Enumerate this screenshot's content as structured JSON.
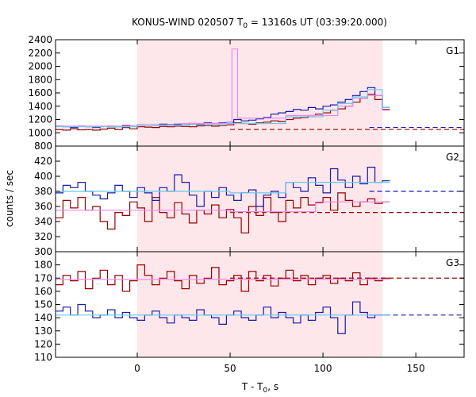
{
  "chart_data": {
    "type": "line",
    "title": "KONUS-WIND 020507 T",
    "title_sub": "0",
    "title_rest": " = 13160s UT (03:39:20.000)",
    "xlabel": "T - T",
    "xlabel_sub": "0",
    "xlabel_rest": ", s",
    "ylabel": "counts / sec",
    "xlim": [
      -44,
      176
    ],
    "xticks": [
      0,
      50,
      100,
      150
    ],
    "shaded_interval": [
      0,
      132
    ],
    "shade_color": "#fde7ea",
    "colors": {
      "red": "#990000",
      "blue": "#1a1ab0",
      "pink": "#ee88ee",
      "cyan": "#66ccee"
    },
    "panels": [
      {
        "label": "G1",
        "ylim": [
          800,
          2400
        ],
        "yticks": [
          800,
          1000,
          1200,
          1400,
          1600,
          1800,
          2000,
          2200,
          2400
        ],
        "bg_levels": [
          {
            "name": "G1 red background",
            "color": "red",
            "value": 1050
          },
          {
            "name": "G1 blue background",
            "color": "blue",
            "value": 1080
          }
        ],
        "series": [
          {
            "name": "G1 red",
            "color": "red",
            "x": [
              -44,
              -40,
              -36,
              -32,
              -28,
              -24,
              -20,
              -16,
              -12,
              -8,
              -4,
              0,
              4,
              8,
              12,
              16,
              20,
              24,
              28,
              32,
              36,
              40,
              44,
              48,
              52,
              56,
              60,
              64,
              68,
              72,
              76,
              80,
              84,
              88,
              92,
              96,
              100,
              104,
              108,
              112,
              116,
              120,
              124,
              128,
              132
            ],
            "y": [
              1050,
              1040,
              1060,
              1045,
              1050,
              1040,
              1055,
              1070,
              1050,
              1080,
              1060,
              1090,
              1085,
              1080,
              1095,
              1090,
              1100,
              1095,
              1090,
              1105,
              1110,
              1100,
              1110,
              1120,
              1150,
              1140,
              1130,
              1150,
              1160,
              1180,
              1170,
              1200,
              1220,
              1230,
              1260,
              1280,
              1300,
              1340,
              1360,
              1400,
              1460,
              1520,
              1580,
              1500,
              1350
            ]
          },
          {
            "name": "G1 blue",
            "color": "blue",
            "x": [
              -44,
              -40,
              -36,
              -32,
              -28,
              -24,
              -20,
              -16,
              -12,
              -8,
              -4,
              0,
              4,
              8,
              12,
              16,
              20,
              24,
              28,
              32,
              36,
              40,
              44,
              48,
              52,
              56,
              60,
              64,
              68,
              72,
              76,
              80,
              84,
              88,
              92,
              96,
              100,
              104,
              108,
              112,
              116,
              120,
              124,
              128,
              132
            ],
            "y": [
              1100,
              1090,
              1080,
              1100,
              1090,
              1080,
              1095,
              1100,
              1090,
              1110,
              1100,
              1120,
              1115,
              1120,
              1130,
              1125,
              1130,
              1120,
              1140,
              1135,
              1150,
              1140,
              1150,
              1160,
              1200,
              1180,
              1190,
              1210,
              1230,
              1280,
              1300,
              1320,
              1350,
              1340,
              1380,
              1360,
              1400,
              1420,
              1460,
              1500,
              1560,
              1620,
              1680,
              1560,
              1380
            ]
          },
          {
            "name": "G1 pink model",
            "color": "pink",
            "x": [
              -44,
              0,
              24,
              48,
              51,
              54,
              80,
              108,
              116,
              124,
              132
            ],
            "y": [
              1100,
              1120,
              1140,
              1160,
              2260,
              1220,
              1260,
              1400,
              1520,
              1560,
              1340
            ]
          },
          {
            "name": "G1 cyan model",
            "color": "cyan",
            "x": [
              -44,
              0,
              24,
              48,
              80,
              100,
              108,
              116,
              124,
              132
            ],
            "y": [
              1090,
              1110,
              1120,
              1140,
              1240,
              1340,
              1440,
              1540,
              1650,
              1380
            ]
          }
        ]
      },
      {
        "label": "G2",
        "ylim": [
          300,
          440
        ],
        "yticks": [
          300,
          320,
          340,
          360,
          380,
          400,
          420
        ],
        "bg_levels": [
          {
            "name": "G2 red background",
            "color": "red",
            "value": 352
          },
          {
            "name": "G2 blue background",
            "color": "blue",
            "value": 380
          }
        ],
        "series": [
          {
            "name": "G2 red",
            "color": "red",
            "x": [
              -44,
              -40,
              -36,
              -32,
              -28,
              -24,
              -20,
              -16,
              -12,
              -8,
              -4,
              0,
              4,
              8,
              12,
              16,
              20,
              24,
              28,
              32,
              36,
              40,
              44,
              48,
              52,
              56,
              60,
              64,
              68,
              72,
              76,
              80,
              84,
              88,
              92,
              96,
              100,
              104,
              108,
              112,
              116,
              120,
              124,
              128,
              132
            ],
            "y": [
              345,
              368,
              358,
              372,
              355,
              360,
              340,
              330,
              352,
              348,
              366,
              358,
              340,
              372,
              352,
              345,
              365,
              350,
              338,
              355,
              350,
              362,
              345,
              356,
              345,
              325,
              360,
              348,
              372,
              352,
              340,
              368,
              358,
              372,
              362,
              365,
              372,
              355,
              378,
              368,
              360,
              366,
              370,
              364,
              366
            ]
          },
          {
            "name": "G2 blue",
            "color": "blue",
            "x": [
              -44,
              -40,
              -36,
              -32,
              -28,
              -24,
              -20,
              -16,
              -12,
              -8,
              -4,
              0,
              4,
              8,
              12,
              16,
              20,
              24,
              28,
              32,
              36,
              40,
              44,
              48,
              52,
              56,
              60,
              64,
              68,
              72,
              76,
              80,
              84,
              88,
              92,
              96,
              100,
              104,
              108,
              112,
              116,
              120,
              124,
              128,
              132
            ],
            "y": [
              378,
              388,
              385,
              392,
              380,
              375,
              370,
              378,
              388,
              380,
              372,
              385,
              378,
              368,
              385,
              380,
              402,
              392,
              375,
              360,
              380,
              372,
              385,
              375,
              368,
              378,
              382,
              360,
              375,
              380,
              372,
              392,
              385,
              380,
              398,
              388,
              378,
              410,
              395,
              385,
              400,
              390,
              412,
              392,
              394
            ]
          },
          {
            "name": "G2 pink model",
            "color": "pink",
            "x": [
              -44,
              0,
              50,
              96,
              132
            ],
            "y": [
              355,
              355,
              353,
              366,
              366
            ]
          },
          {
            "name": "G2 cyan model",
            "color": "cyan",
            "x": [
              -44,
              0,
              50,
              80,
              132
            ],
            "y": [
              380,
              380,
              378,
              392,
              392
            ]
          }
        ]
      },
      {
        "label": "G3",
        "ylim": [
          110,
          190
        ],
        "yticks": [
          110,
          120,
          130,
          140,
          150,
          160,
          170,
          180
        ],
        "bg_levels": [
          {
            "name": "G3 red background",
            "color": "red",
            "value": 170
          },
          {
            "name": "G3 blue background",
            "color": "blue",
            "value": 142
          }
        ],
        "series": [
          {
            "name": "G3 red",
            "color": "red",
            "x": [
              -44,
              -40,
              -36,
              -32,
              -28,
              -24,
              -20,
              -16,
              -12,
              -8,
              -4,
              0,
              4,
              8,
              12,
              16,
              20,
              24,
              28,
              32,
              36,
              40,
              44,
              48,
              52,
              56,
              60,
              64,
              68,
              72,
              76,
              80,
              84,
              88,
              92,
              96,
              100,
              104,
              108,
              112,
              116,
              120,
              124,
              128,
              132
            ],
            "y": [
              165,
              172,
              168,
              175,
              162,
              170,
              176,
              165,
              172,
              160,
              168,
              180,
              172,
              165,
              170,
              175,
              168,
              162,
              172,
              166,
              170,
              178,
              165,
              168,
              172,
              160,
              175,
              168,
              172,
              164,
              170,
              176,
              168,
              172,
              165,
              170,
              172,
              166,
              170,
              168,
              174,
              165,
              170,
              168,
              170
            ]
          },
          {
            "name": "G3 blue",
            "color": "blue",
            "x": [
              -44,
              -40,
              -36,
              -32,
              -28,
              -24,
              -20,
              -16,
              -12,
              -8,
              -4,
              0,
              4,
              8,
              12,
              16,
              20,
              24,
              28,
              32,
              36,
              40,
              44,
              48,
              52,
              56,
              60,
              64,
              68,
              72,
              76,
              80,
              84,
              88,
              92,
              96,
              100,
              104,
              108,
              112,
              116,
              120,
              124,
              128,
              132
            ],
            "y": [
              145,
              148,
              142,
              150,
              145,
              140,
              142,
              146,
              140,
              144,
              140,
              138,
              142,
              145,
              140,
              136,
              142,
              140,
              138,
              146,
              142,
              140,
              135,
              142,
              145,
              140,
              138,
              142,
              148,
              140,
              144,
              140,
              136,
              142,
              138,
              144,
              148,
              140,
              128,
              142,
              152,
              144,
              140,
              142,
              142
            ]
          },
          {
            "name": "G3 pink model",
            "color": "pink",
            "x": [
              -44,
              132
            ],
            "y": [
              169,
              169
            ]
          },
          {
            "name": "G3 cyan model",
            "color": "cyan",
            "x": [
              -44,
              132
            ],
            "y": [
              142,
              142
            ]
          }
        ]
      }
    ]
  }
}
